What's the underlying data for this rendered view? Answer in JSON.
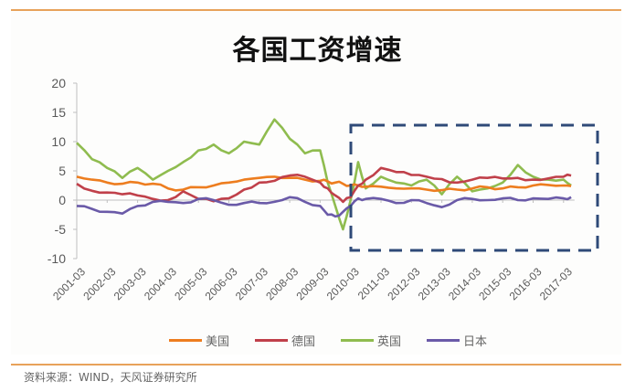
{
  "title": "各国工资增速",
  "source": "资料来源：WIND，天风证券研究所",
  "colors": {
    "us": "#ed7d1f",
    "de": "#c0404a",
    "uk": "#8fbc4f",
    "jp": "#6a5aa8",
    "highlight_box": "#2f4a78",
    "accent_line": "#e8a25a"
  },
  "legend": [
    {
      "name": "美国",
      "color": "#ed7d1f"
    },
    {
      "name": "德国",
      "color": "#c0404a"
    },
    {
      "name": "英国",
      "color": "#8fbc4f"
    },
    {
      "name": "日本",
      "color": "#6a5aa8"
    }
  ],
  "chart_data": {
    "type": "line",
    "title": "各国工资增速",
    "xlabel": "",
    "ylabel": "",
    "ylim": [
      -10,
      20
    ],
    "yticks": [
      20,
      15,
      10,
      5,
      0,
      -5,
      -10
    ],
    "xticks": [
      "2001-03",
      "2002-03",
      "2003-03",
      "2004-03",
      "2005-03",
      "2006-03",
      "2007-03",
      "2008-03",
      "2009-03",
      "2010-03",
      "2011-03",
      "2012-03",
      "2013-03",
      "2014-03",
      "2015-03",
      "2016-03",
      "2017-03"
    ],
    "grid": false,
    "legend_position": "bottom",
    "annotation": "dashed rectangle highlighting 2010-03 to 2017-03, y range about -8.5 to 12.8",
    "x": [
      2001.0,
      2001.5,
      2002.0,
      2002.5,
      2003.0,
      2003.5,
      2004.0,
      2004.5,
      2005.0,
      2005.5,
      2006.0,
      2006.5,
      2007.0,
      2007.5,
      2008.0,
      2008.5,
      2009.0,
      2009.25,
      2009.5,
      2009.75,
      2010.0,
      2010.25,
      2010.5,
      2011.0,
      2011.5,
      2012.0,
      2012.5,
      2013.0,
      2013.5,
      2014.0,
      2014.5,
      2015.0,
      2015.5,
      2016.0,
      2016.5,
      2017.0,
      2017.25
    ],
    "series": [
      {
        "name": "美国",
        "values": [
          4.0,
          3.5,
          3.0,
          2.8,
          3.0,
          2.8,
          2.0,
          1.8,
          2.2,
          2.5,
          3.0,
          3.5,
          3.8,
          4.0,
          3.8,
          3.5,
          3.3,
          3.2,
          3.0,
          2.8,
          2.5,
          2.5,
          2.3,
          2.3,
          2.0,
          2.0,
          1.8,
          1.7,
          1.8,
          2.0,
          2.2,
          2.0,
          2.2,
          2.5,
          2.6,
          2.5,
          2.4
        ]
      },
      {
        "name": "德国",
        "values": [
          2.8,
          1.6,
          1.3,
          1.0,
          0.8,
          0.2,
          0.0,
          1.5,
          0.2,
          -0.2,
          0.3,
          1.8,
          3.0,
          3.3,
          4.2,
          4.0,
          3.0,
          2.0,
          0.8,
          -0.3,
          0.5,
          2.5,
          3.5,
          5.5,
          4.8,
          4.3,
          4.0,
          3.6,
          3.0,
          3.5,
          3.8,
          3.7,
          3.8,
          3.5,
          3.7,
          4.0,
          4.2
        ]
      },
      {
        "name": "英国",
        "values": [
          9.8,
          7.0,
          5.5,
          3.8,
          5.5,
          3.5,
          5.0,
          6.5,
          8.5,
          9.5,
          8.0,
          10.0,
          9.5,
          13.8,
          10.5,
          8.0,
          8.5,
          3.0,
          -1.0,
          -5.0,
          0.0,
          6.5,
          2.0,
          4.0,
          3.0,
          2.5,
          3.5,
          1.0,
          4.0,
          1.5,
          2.0,
          3.0,
          6.0,
          4.0,
          3.5,
          3.5,
          2.5
        ]
      },
      {
        "name": "日本",
        "values": [
          -1.0,
          -1.5,
          -2.0,
          -2.3,
          -1.0,
          -0.3,
          -0.3,
          -0.5,
          0.2,
          0.0,
          -0.8,
          -0.5,
          -0.5,
          -0.3,
          0.5,
          -0.3,
          -1.0,
          -2.5,
          -2.8,
          -2.0,
          -1.0,
          0.3,
          0.2,
          0.2,
          -0.5,
          0.0,
          -0.5,
          -1.2,
          0.0,
          0.2,
          0.0,
          0.3,
          0.0,
          0.3,
          0.2,
          0.3,
          0.5
        ]
      }
    ]
  }
}
